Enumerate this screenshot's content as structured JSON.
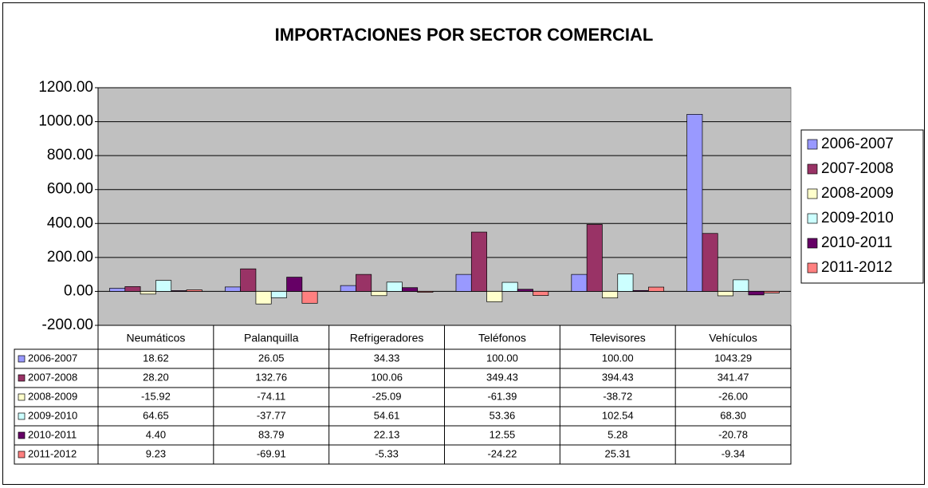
{
  "chart_data": {
    "type": "bar",
    "title": "IMPORTACIONES POR SECTOR COMERCIAL",
    "categories": [
      "Neumáticos",
      "Palanquilla",
      "Refrigeradores",
      "Teléfonos",
      "Televisores",
      "Vehículos"
    ],
    "series": [
      {
        "name": "2006-2007",
        "color": "#9999ff",
        "values": [
          18.62,
          26.05,
          34.33,
          100,
          100,
          1043.29
        ],
        "value_labels": [
          "18.62",
          "26.05",
          "34.33",
          "100.00",
          "100.00",
          "1043.29"
        ]
      },
      {
        "name": "2007-2008",
        "color": "#993366",
        "values": [
          28.2,
          132.76,
          100.06,
          349.43,
          394.43,
          341.47
        ],
        "value_labels": [
          "28.20",
          "132.76",
          "100.06",
          "349.43",
          "394.43",
          "341.47"
        ]
      },
      {
        "name": "2008-2009",
        "color": "#ffffcc",
        "values": [
          -15.92,
          -74.11,
          -25.09,
          -61.39,
          -38.72,
          -26
        ],
        "value_labels": [
          "-15.92",
          "-74.11",
          "-25.09",
          "-61.39",
          "-38.72",
          "-26.00"
        ]
      },
      {
        "name": "2009-2010",
        "color": "#ccffff",
        "values": [
          64.65,
          -37.77,
          54.61,
          53.36,
          102.54,
          68.3
        ],
        "value_labels": [
          "64.65",
          "-37.77",
          "54.61",
          "53.36",
          "102.54",
          "68.30"
        ]
      },
      {
        "name": "2010-2011",
        "color": "#660066",
        "values": [
          4.4,
          83.79,
          22.13,
          12.55,
          5.28,
          -20.78
        ],
        "value_labels": [
          "4.40",
          "83.79",
          "22.13",
          "12.55",
          "5.28",
          "-20.78"
        ]
      },
      {
        "name": "2011-2012",
        "color": "#ff8080",
        "values": [
          9.23,
          -69.91,
          -5.33,
          -24.22,
          25.31,
          -9.34
        ],
        "value_labels": [
          "9.23",
          "-69.91",
          "-5.33",
          "-24.22",
          "25.31",
          "-9.34"
        ]
      }
    ],
    "ylim": [
      -200,
      1200
    ],
    "yticks": [
      {
        "value": -200,
        "label": "-200.00"
      },
      {
        "value": 0,
        "label": "0.00"
      },
      {
        "value": 200,
        "label": "200.00"
      },
      {
        "value": 400,
        "label": "400.00"
      },
      {
        "value": 600,
        "label": "600.00"
      },
      {
        "value": 800,
        "label": "800.00"
      },
      {
        "value": 1000,
        "label": "1000.00"
      },
      {
        "value": 1200,
        "label": "1200.00"
      }
    ],
    "grid": true,
    "plot_background": "#c0c0c0",
    "legend": "right"
  }
}
